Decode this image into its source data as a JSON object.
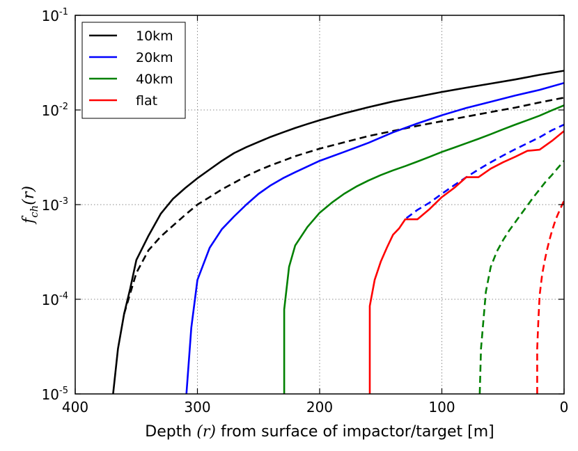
{
  "chart_data": {
    "type": "line",
    "x_scale": "linear",
    "y_scale": "log",
    "xlim": [
      400,
      0
    ],
    "ylim": [
      1e-05,
      0.1
    ],
    "x_ticks": [
      400,
      300,
      200,
      100,
      0
    ],
    "y_ticks": [
      {
        "value": 1e-05,
        "base": "10",
        "exp": "-5"
      },
      {
        "value": 0.0001,
        "base": "10",
        "exp": "-4"
      },
      {
        "value": 0.001,
        "base": "10",
        "exp": "-3"
      },
      {
        "value": 0.01,
        "base": "10",
        "exp": "-2"
      },
      {
        "value": 0.1,
        "base": "10",
        "exp": "-1"
      }
    ],
    "grid": true,
    "grid_style": "dotted",
    "xlabel": {
      "prefix": "Depth ",
      "math": "(r)",
      "suffix": " from surface of impactor/target [m]"
    },
    "ylabel": {
      "f": "f",
      "sub": "ch",
      "arg": "(r)"
    },
    "legend": {
      "position": "top-left",
      "entries": [
        {
          "label": "10km",
          "color": "#000000"
        },
        {
          "label": "20km",
          "color": "#0000ff"
        },
        {
          "label": "40km",
          "color": "#008000"
        },
        {
          "label": "flat",
          "color": "#ff0000"
        }
      ]
    },
    "series": [
      {
        "name": "10km",
        "color": "#000000",
        "style": "solid",
        "x": [
          369,
          365,
          360,
          355,
          350,
          340,
          330,
          320,
          310,
          300,
          290,
          280,
          270,
          260,
          250,
          240,
          230,
          220,
          210,
          200,
          180,
          160,
          140,
          120,
          100,
          80,
          60,
          40,
          20,
          0
        ],
        "y": [
          1e-05,
          3e-05,
          7e-05,
          0.00013,
          0.00026,
          0.00047,
          0.0008,
          0.00115,
          0.0015,
          0.0019,
          0.00235,
          0.0029,
          0.0035,
          0.00405,
          0.0046,
          0.0052,
          0.0058,
          0.00645,
          0.0071,
          0.0078,
          0.0092,
          0.0107,
          0.0123,
          0.0138,
          0.0155,
          0.0172,
          0.019,
          0.021,
          0.0235,
          0.026
        ]
      },
      {
        "name": "10km (dashed)",
        "color": "#000000",
        "style": "dashed",
        "x": [
          360,
          350,
          340,
          330,
          320,
          310,
          300,
          290,
          280,
          270,
          260,
          250,
          240,
          230,
          220,
          200,
          180,
          160,
          140,
          120,
          100,
          80,
          60,
          40,
          20,
          0
        ],
        "y": [
          7e-05,
          0.00019,
          0.00033,
          0.00046,
          0.0006,
          0.00078,
          0.001,
          0.0012,
          0.00145,
          0.0017,
          0.002,
          0.0023,
          0.0026,
          0.0029,
          0.00325,
          0.0039,
          0.00455,
          0.0053,
          0.006,
          0.0068,
          0.0076,
          0.0085,
          0.0095,
          0.0106,
          0.012,
          0.0135
        ]
      },
      {
        "name": "20km",
        "color": "#0000ff",
        "style": "solid",
        "x": [
          309,
          305,
          300,
          290,
          280,
          270,
          260,
          250,
          240,
          230,
          220,
          200,
          180,
          160,
          140,
          120,
          100,
          80,
          60,
          40,
          20,
          0
        ],
        "y": [
          1e-05,
          5e-05,
          0.00016,
          0.00035,
          0.00055,
          0.00075,
          0.001,
          0.0013,
          0.0016,
          0.0019,
          0.0022,
          0.0029,
          0.0036,
          0.0045,
          0.0058,
          0.0072,
          0.0088,
          0.0105,
          0.0122,
          0.0142,
          0.0163,
          0.0193
        ]
      },
      {
        "name": "20km (dashed)",
        "color": "#0000ff",
        "style": "dashed",
        "x": [
          129,
          120,
          110,
          100,
          90,
          80,
          70,
          60,
          50,
          40,
          30,
          20,
          10,
          0
        ],
        "y": [
          0.00072,
          0.00088,
          0.00105,
          0.0013,
          0.0016,
          0.00195,
          0.00235,
          0.0028,
          0.0033,
          0.00385,
          0.00445,
          0.00515,
          0.0061,
          0.007
        ]
      },
      {
        "name": "40km",
        "color": "#008000",
        "style": "solid",
        "x": [
          229,
          229,
          225,
          220,
          210,
          200,
          190,
          180,
          170,
          160,
          150,
          140,
          130,
          120,
          110,
          100,
          90,
          80,
          70,
          60,
          50,
          40,
          30,
          20,
          10,
          0
        ],
        "y": [
          1e-05,
          7.8e-05,
          0.00022,
          0.00037,
          0.00058,
          0.00082,
          0.00105,
          0.0013,
          0.00155,
          0.0018,
          0.00205,
          0.0023,
          0.00255,
          0.00285,
          0.0032,
          0.0036,
          0.004,
          0.00445,
          0.00495,
          0.00555,
          0.00625,
          0.007,
          0.0078,
          0.0087,
          0.0099,
          0.0112
        ]
      },
      {
        "name": "40km (dashed)",
        "color": "#008000",
        "style": "dashed",
        "x": [
          69,
          68,
          66,
          64,
          60,
          55,
          50,
          45,
          40,
          35,
          30,
          25,
          20,
          15,
          10,
          5,
          0
        ],
        "y": [
          1e-05,
          3e-05,
          6e-05,
          0.00012,
          0.00022,
          0.00032,
          0.00042,
          0.00053,
          0.00065,
          0.0008,
          0.00098,
          0.0012,
          0.00145,
          0.00175,
          0.00205,
          0.00245,
          0.0029
        ]
      },
      {
        "name": "flat",
        "color": "#ff0000",
        "style": "solid",
        "x": [
          159,
          159,
          155,
          150,
          145,
          140,
          135,
          130,
          120,
          110,
          100,
          90,
          80,
          70,
          60,
          50,
          40,
          30,
          20,
          10,
          0
        ],
        "y": [
          1e-05,
          8.5e-05,
          0.00016,
          0.00025,
          0.00035,
          0.00048,
          0.00056,
          0.0007,
          0.0007,
          0.0009,
          0.0012,
          0.0015,
          0.00195,
          0.00195,
          0.0024,
          0.0028,
          0.0032,
          0.0037,
          0.0038,
          0.0047,
          0.006
        ]
      },
      {
        "name": "flat (dashed)",
        "color": "#ff0000",
        "style": "dashed",
        "x": [
          22,
          22,
          21,
          20,
          18,
          16,
          14,
          12,
          10,
          8,
          6,
          4,
          2,
          0
        ],
        "y": [
          1e-05,
          3e-05,
          6e-05,
          0.00011,
          0.00018,
          0.00025,
          0.00033,
          0.00042,
          0.00052,
          0.00063,
          0.00074,
          0.00085,
          0.00097,
          0.0011
        ]
      }
    ]
  }
}
